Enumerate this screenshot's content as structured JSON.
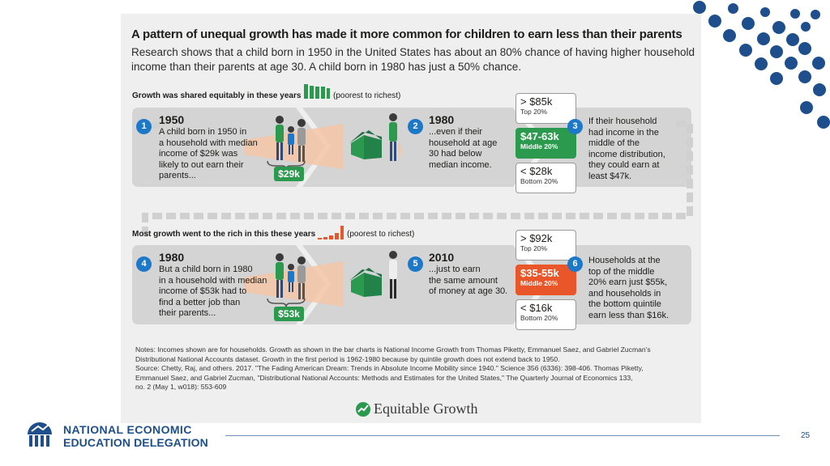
{
  "infographic": {
    "headline": "A pattern of unequal growth has made it more common for children to earn less than their parents",
    "subhead_line1": "Research shows that a child born in 1950 in the United States has about an 80% chance of having higher household",
    "subhead_line2": "income than their parents at age 30. A child born in 1980 has just a 50% chance.",
    "section1": {
      "title": "Growth was shared equitably in these years",
      "scale": "(poorest to richest)",
      "steps": [
        {
          "num": "1",
          "year": "1950",
          "text": [
            "A child born in 1950 in",
            "a household with median",
            "income of $29k was",
            "likely to out earn their",
            "parents..."
          ],
          "badge": "$29k"
        },
        {
          "num": "2",
          "year": "1980",
          "text": [
            "...even if their",
            "household at age",
            "30 had below",
            "median income."
          ]
        },
        {
          "num": "3",
          "text": [
            "If their household",
            "had income in the",
            "middle of the",
            "income distribution,",
            "they could earn at",
            "least $47k."
          ]
        }
      ],
      "boxes": [
        {
          "value": "> $85k",
          "label": "Top 20%"
        },
        {
          "value": "$47-63k",
          "label": "Middle 20%"
        },
        {
          "value": "< $28k",
          "label": "Bottom 20%"
        }
      ]
    },
    "section2": {
      "title": "Most growth went to the rich in this these years",
      "scale": "(poorest to richest)",
      "steps": [
        {
          "num": "4",
          "year": "1980",
          "text": [
            "But a child born in 1980",
            "in a household with median",
            "income of $53k had to",
            "find a better job than",
            "their parents..."
          ],
          "badge": "$53k"
        },
        {
          "num": "5",
          "year": "2010",
          "text": [
            "...just to earn",
            "the same amount",
            "of money at age 30."
          ]
        },
        {
          "num": "6",
          "text": [
            "Households at the",
            "top of the middle",
            "20% earn just $55k,",
            "and households in",
            "the bottom quintile",
            "earn less than $16k."
          ]
        }
      ],
      "boxes": [
        {
          "value": "> $92k",
          "label": "Top 20%"
        },
        {
          "value": "$35-55k",
          "label": "Middle 20%"
        },
        {
          "value": "< $16k",
          "label": "Bottom 20%"
        }
      ]
    },
    "notes": [
      "Notes: Incomes shown are for households. Growth as shown in the bar charts is National Income Growth from Thomas Piketty, Emmanuel Saez, and Gabriel Zucman's",
      "Distributional National Accounts dataset. Growth in the first period is 1962-1980 because by quintile growth does not extend back to 1950.",
      "Source: Chetty, Raj, and others. 2017. \"The Fading American Dream: Trends in Absolute Income Mobility since 1940.\" Science 356 (6336): 398-406. Thomas Piketty,",
      "Emmanuel Saez, and Gabriel Zucman, \"Distributional National Accounts: Methods and Estimates for the United States,\" The Quarterly Journal of Economics 133,",
      "no. 2 (May 1, w018): 553-609"
    ],
    "source_logo": "Equitable Growth"
  },
  "footer": {
    "org_line1": "NATIONAL ECONOMIC",
    "org_line2": "EDUCATION DELEGATION",
    "page_number": "25"
  },
  "colors": {
    "accent_blue": "#1e78c8",
    "navy": "#1e4f8c",
    "green": "#2b9a4e",
    "orange": "#e8562a"
  }
}
